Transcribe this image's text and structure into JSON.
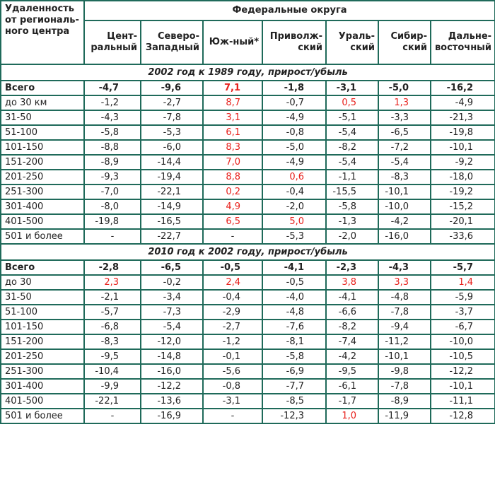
{
  "header": {
    "corner": "Удаленность от региональ-ного центра",
    "group": "Федеральные округа",
    "regions": [
      "Цент-ральный",
      "Северо-Западный",
      "Юж-ный*",
      "Приволж-ский",
      "Ураль-ский",
      "Сибир-ский",
      "Дальне-восточный"
    ]
  },
  "sections": [
    {
      "title": "2002 год к 1989 году, прирост/убыль",
      "rows": [
        {
          "label": "Всего",
          "bold": true,
          "values": [
            "-4,7",
            "-9,6",
            "7,1",
            "-1,8",
            "-3,1",
            "-5,0",
            "-16,2"
          ],
          "red": [
            false,
            false,
            true,
            false,
            false,
            false,
            false
          ]
        },
        {
          "label": "до 30 км",
          "bold": false,
          "values": [
            "-1,2",
            "-2,7",
            "8,7",
            "-0,7",
            "0,5",
            "1,3",
            "-4,9"
          ],
          "red": [
            false,
            false,
            true,
            false,
            true,
            true,
            false
          ]
        },
        {
          "label": "31-50",
          "bold": false,
          "values": [
            "-4,3",
            "-7,8",
            "3,1",
            "-4,9",
            "-5,1",
            "-3,3",
            "-21,3"
          ],
          "red": [
            false,
            false,
            true,
            false,
            false,
            false,
            false
          ]
        },
        {
          "label": "51-100",
          "bold": false,
          "values": [
            "-5,8",
            "-5,3",
            "6,1",
            "-0,8",
            "-5,4",
            "-6,5",
            "-19,8"
          ],
          "red": [
            false,
            false,
            true,
            false,
            false,
            false,
            false
          ]
        },
        {
          "label": "101-150",
          "bold": false,
          "values": [
            "-8,8",
            "-6,0",
            "8,3",
            "-5,0",
            "-8,2",
            "-7,2",
            "-10,1"
          ],
          "red": [
            false,
            false,
            true,
            false,
            false,
            false,
            false
          ]
        },
        {
          "label": "151-200",
          "bold": false,
          "values": [
            "-8,9",
            "-14,4",
            "7,0",
            "-4,9",
            "-5,4",
            "-5,4",
            "-9,2"
          ],
          "red": [
            false,
            false,
            true,
            false,
            false,
            false,
            false
          ]
        },
        {
          "label": "201-250",
          "bold": false,
          "values": [
            "-9,3",
            "-19,4",
            "8,8",
            "0,6",
            "-1,1",
            "-8,3",
            "-18,0"
          ],
          "red": [
            false,
            false,
            true,
            true,
            false,
            false,
            false
          ]
        },
        {
          "label": "251-300",
          "bold": false,
          "values": [
            "-7,0",
            "-22,1",
            "0,2",
            "-0,4",
            "-15,5",
            "-10,1",
            "-19,2"
          ],
          "red": [
            false,
            false,
            true,
            false,
            false,
            false,
            false
          ]
        },
        {
          "label": "301-400",
          "bold": false,
          "values": [
            "-8,0",
            "-14,9",
            "4,9",
            "-2,0",
            "-5,8",
            "-10,0",
            "-15,2"
          ],
          "red": [
            false,
            false,
            true,
            false,
            false,
            false,
            false
          ]
        },
        {
          "label": "401-500",
          "bold": false,
          "values": [
            "-19,8",
            "-16,5",
            "6,5",
            "5,0",
            "-1,3",
            "-4,2",
            "-20,1"
          ],
          "red": [
            false,
            false,
            true,
            true,
            false,
            false,
            false
          ]
        },
        {
          "label": "501 и более",
          "bold": false,
          "values": [
            "-",
            "-22,7",
            "-",
            "-5,3",
            "-2,0",
            "-16,0",
            "-33,6"
          ],
          "red": [
            false,
            false,
            false,
            false,
            false,
            false,
            false
          ]
        }
      ]
    },
    {
      "title": "2010 год к 2002 году, прирост/убыль",
      "rows": [
        {
          "label": "Всего",
          "bold": true,
          "values": [
            "-2,8",
            "-6,5",
            "-0,5",
            "-4,1",
            "-2,3",
            "-4,3",
            "-5,7"
          ],
          "red": [
            false,
            false,
            false,
            false,
            false,
            false,
            false
          ]
        },
        {
          "label": "до 30",
          "bold": false,
          "values": [
            "2,3",
            "-0,2",
            "2,4",
            "-0,5",
            "3,8",
            "3,3",
            "1,4"
          ],
          "red": [
            true,
            false,
            true,
            false,
            true,
            true,
            true
          ]
        },
        {
          "label": "31-50",
          "bold": false,
          "values": [
            "-2,1",
            "-3,4",
            "-0,4",
            "-4,0",
            "-4,1",
            "-4,8",
            "-5,9"
          ],
          "red": [
            false,
            false,
            false,
            false,
            false,
            false,
            false
          ]
        },
        {
          "label": "51-100",
          "bold": false,
          "values": [
            "-5,7",
            "-7,3",
            "-2,9",
            "-4,8",
            "-6,6",
            "-7,8",
            "-3,7"
          ],
          "red": [
            false,
            false,
            false,
            false,
            false,
            false,
            false
          ]
        },
        {
          "label": "101-150",
          "bold": false,
          "values": [
            "-6,8",
            "-5,4",
            "-2,7",
            "-7,6",
            "-8,2",
            "-9,4",
            "-6,7"
          ],
          "red": [
            false,
            false,
            false,
            false,
            false,
            false,
            false
          ]
        },
        {
          "label": "151-200",
          "bold": false,
          "values": [
            "-8,3",
            "-12,0",
            "-1,2",
            "-8,1",
            "-7,4",
            "-11,2",
            "-10,0"
          ],
          "red": [
            false,
            false,
            false,
            false,
            false,
            false,
            false
          ]
        },
        {
          "label": "201-250",
          "bold": false,
          "values": [
            "-9,5",
            "-14,8",
            "-0,1",
            "-5,8",
            "-4,2",
            "-10,1",
            "-10,5"
          ],
          "red": [
            false,
            false,
            false,
            false,
            false,
            false,
            false
          ]
        },
        {
          "label": "251-300",
          "bold": false,
          "values": [
            "-10,4",
            "-16,0",
            "-5,6",
            "-6,9",
            "-9,5",
            "-9,8",
            "-12,2"
          ],
          "red": [
            false,
            false,
            false,
            false,
            false,
            false,
            false
          ]
        },
        {
          "label": "301-400",
          "bold": false,
          "values": [
            "-9,9",
            "-12,2",
            "-0,8",
            "-7,7",
            "-6,1",
            "-7,8",
            "-10,1"
          ],
          "red": [
            false,
            false,
            false,
            false,
            false,
            false,
            false
          ]
        },
        {
          "label": "401-500",
          "bold": false,
          "values": [
            "-22,1",
            "-13,6",
            "-3,1",
            "-8,5",
            "-1,7",
            "-8,9",
            "-11,1"
          ],
          "red": [
            false,
            false,
            false,
            false,
            false,
            false,
            false
          ]
        },
        {
          "label": "501 и более",
          "bold": false,
          "values": [
            "-",
            "-16,9",
            "-",
            "-12,3",
            "1,0",
            "-11,9",
            "-12,8"
          ],
          "red": [
            false,
            false,
            false,
            false,
            true,
            false,
            false
          ]
        }
      ]
    }
  ],
  "colors": {
    "border": "#1f6a5a",
    "positive": "#e8201b",
    "text": "#222222"
  }
}
